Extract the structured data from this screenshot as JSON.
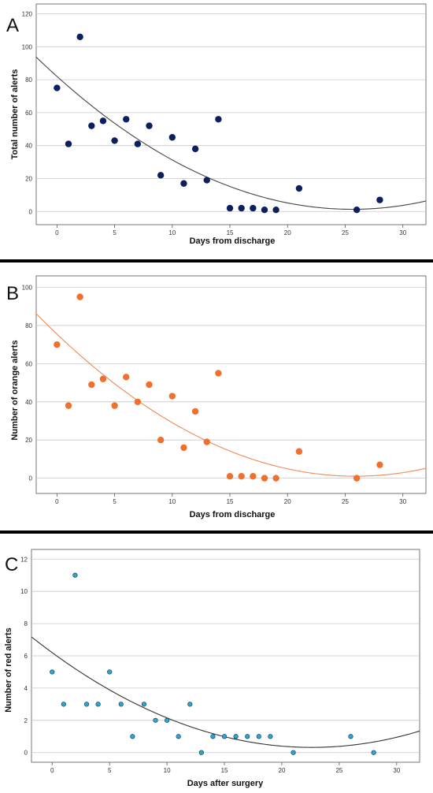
{
  "chart_data": [
    {
      "panel": "A",
      "type": "scatter",
      "xlabel": "Days from discharge",
      "ylabel": "Total number of alerts",
      "xlim": [
        -1.8,
        32
      ],
      "ylim": [
        -8,
        126
      ],
      "xticks": [
        0,
        5,
        10,
        15,
        20,
        25,
        30
      ],
      "yticks": [
        0,
        20,
        40,
        60,
        80,
        100,
        120
      ],
      "grid": "horizontal",
      "points": {
        "x": [
          0,
          1,
          2,
          3,
          4,
          5,
          6,
          7,
          8,
          9,
          10,
          11,
          12,
          13,
          14,
          15,
          16,
          17,
          18,
          19,
          21,
          26,
          28
        ],
        "y": [
          75,
          41,
          106,
          52,
          55,
          43,
          56,
          41,
          52,
          22,
          45,
          17,
          38,
          19,
          56,
          2,
          2,
          2,
          1,
          1,
          14,
          1,
          7
        ]
      },
      "fit": {
        "kind": "quadratic",
        "coef": [
          82,
          -6.3,
          0.123
        ]
      },
      "color": "#0d1f5c",
      "fit_color": "#444444"
    },
    {
      "panel": "B",
      "type": "scatter",
      "xlabel": "Days from discharge",
      "ylabel": "Number of orange alerts",
      "xlim": [
        -1.8,
        32
      ],
      "ylim": [
        -8,
        106
      ],
      "xticks": [
        0,
        5,
        10,
        15,
        20,
        25,
        30
      ],
      "yticks": [
        0,
        20,
        40,
        60,
        80,
        100
      ],
      "grid": "horizontal",
      "points": {
        "x": [
          0,
          1,
          2,
          3,
          4,
          5,
          6,
          7,
          8,
          9,
          10,
          11,
          12,
          13,
          14,
          15,
          16,
          17,
          18,
          19,
          21,
          26,
          28
        ],
        "y": [
          70,
          38,
          95,
          49,
          52,
          38,
          53,
          40,
          49,
          20,
          43,
          16,
          35,
          19,
          55,
          1,
          1,
          1,
          0,
          0,
          14,
          0,
          7
        ]
      },
      "fit": {
        "kind": "quadratic",
        "coef": [
          75.5,
          -5.75,
          0.111
        ]
      },
      "color": "#f0712f",
      "fit_color": "#f08a55"
    },
    {
      "panel": "C",
      "type": "scatter",
      "xlabel": "Days after surgery",
      "ylabel": "Number of red alerts",
      "xlim": [
        -1.8,
        32
      ],
      "ylim": [
        -0.6,
        12.6
      ],
      "xticks": [
        0,
        5,
        10,
        15,
        20,
        25,
        30
      ],
      "yticks": [
        0,
        2,
        4,
        6,
        8,
        10,
        12
      ],
      "grid": "horizontal",
      "points": {
        "x": [
          0,
          1,
          2,
          3,
          4,
          5,
          6,
          7,
          8,
          9,
          10,
          11,
          12,
          13,
          14,
          15,
          16,
          17,
          18,
          19,
          21,
          26,
          28
        ],
        "y": [
          5,
          3,
          11,
          3,
          3,
          5,
          3,
          1,
          3,
          2,
          2,
          1,
          3,
          0,
          1,
          1,
          1,
          1,
          1,
          1,
          0,
          1,
          0
        ]
      },
      "fit": {
        "kind": "quadratic",
        "coef": [
          6.2,
          -0.52,
          0.0115
        ]
      },
      "color": "#29a8d6",
      "fit_color": "#333333"
    }
  ]
}
